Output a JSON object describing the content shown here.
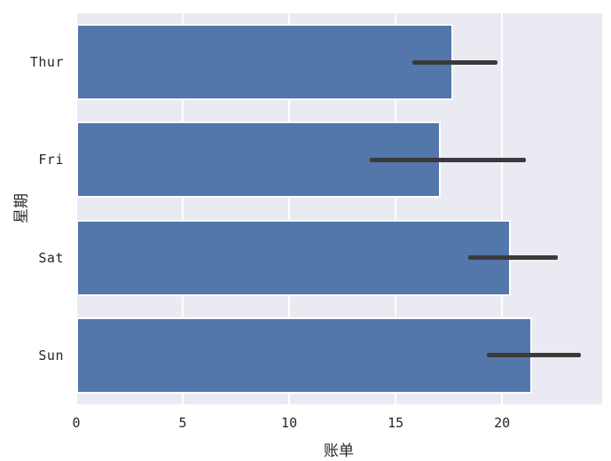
{
  "chart_data": {
    "type": "bar",
    "orientation": "horizontal",
    "title": "",
    "xlabel": "账单",
    "ylabel": "星期",
    "categories": [
      "Thur",
      "Fri",
      "Sat",
      "Sun"
    ],
    "values": [
      17.7,
      17.1,
      20.4,
      21.4
    ],
    "error_low": [
      15.8,
      13.8,
      18.4,
      19.3
    ],
    "error_high": [
      19.8,
      21.1,
      22.6,
      23.7
    ],
    "xticks": [
      0,
      5,
      10,
      15,
      20
    ],
    "xtick_labels": [
      "0",
      "5",
      "10",
      "15",
      "20"
    ],
    "xlim": [
      0,
      24.7
    ],
    "grid": true,
    "legend": false,
    "style": "seaborn-darkgrid",
    "colors": {
      "bar_fill": "#5376AB",
      "bar_edge": "#ffffff",
      "errorbar": "#3A3A3A",
      "plot_background": "#EAEAF2",
      "gridline": "#ffffff",
      "figure_background": "#ffffff",
      "text": "#262626"
    }
  }
}
